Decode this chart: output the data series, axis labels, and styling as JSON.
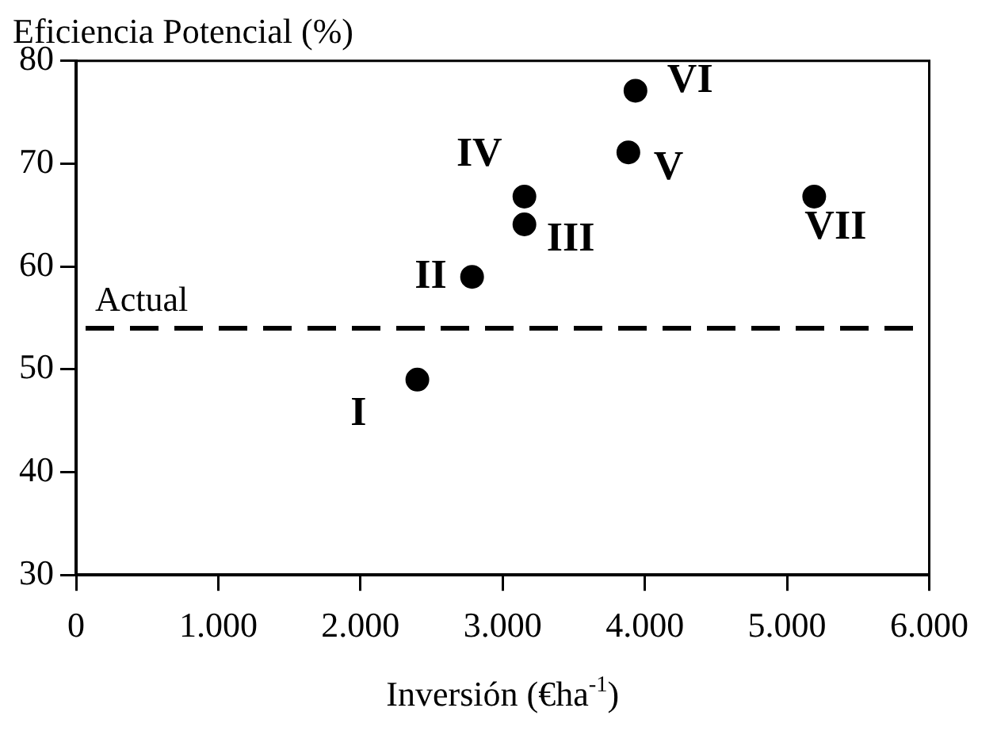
{
  "chart_data": {
    "type": "scatter",
    "ylabel": "Eficiencia Potencial (%)",
    "xlabel": "Inversión (€ha$^{-1}$)",
    "x": [
      2400,
      2785,
      3153,
      3153,
      3884,
      3934,
      5191
    ],
    "series": [
      {
        "color": "#000000",
        "values": [
          49,
          59,
          64.1,
          66.8,
          71.1,
          77.1,
          66.8
        ]
      }
    ],
    "marker": "circle",
    "xlim": [
      0,
      6000
    ],
    "xticks": [
      0,
      {
        "value": 1000,
        "label": "1.000"
      },
      {
        "value": 2000,
        "label": "2.000"
      },
      {
        "value": 3000,
        "label": "3.000"
      },
      {
        "value": 4000,
        "label": "4.000"
      },
      {
        "value": 5000,
        "label": "5.000"
      },
      {
        "value": 6000,
        "label": "6.000"
      }
    ],
    "ylim": [
      30,
      80
    ],
    "yticks": [
      30,
      40,
      50,
      60,
      70,
      80
    ],
    "grid": false,
    "legend": false,
    "ref_lines": [
      {
        "axis": "y",
        "value": 54,
        "label": "Actual",
        "line_style": "dashed",
        "color": "#000000"
      }
    ],
    "annotations": [
      {
        "text": "I",
        "x": 2400,
        "y": 49
      },
      {
        "text": "II",
        "x": 2785,
        "y": 59
      },
      {
        "text": "III",
        "x": 3153,
        "y": 64.1
      },
      {
        "text": "IV",
        "x": 3153,
        "y": 66.8
      },
      {
        "text": "V",
        "x": 3884,
        "y": 71.1
      },
      {
        "text": "VI",
        "x": 3934,
        "y": 77.1
      },
      {
        "text": "VII",
        "x": 5191,
        "y": 66.8
      }
    ]
  }
}
